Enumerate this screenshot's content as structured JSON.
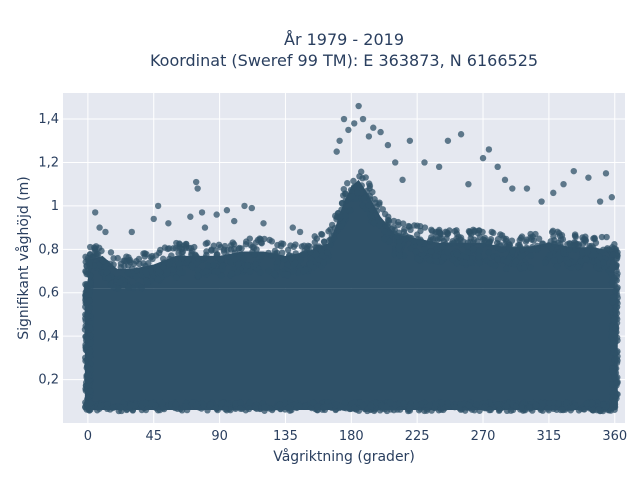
{
  "chart_data": {
    "type": "scatter",
    "title_line1": "År 1979 - 2019",
    "title_line2": "Koordinat (Sweref 99 TM): E 363873, N 6166525",
    "xlabel": "Vågriktning (grader)",
    "ylabel": "Signifikant våghöjd (m)",
    "xlim": [
      -17,
      367
    ],
    "ylim": [
      0.0,
      1.52
    ],
    "xticks": [
      0,
      45,
      90,
      135,
      180,
      225,
      270,
      315,
      360
    ],
    "xtick_labels": [
      "0",
      "45",
      "90",
      "135",
      "180",
      "225",
      "270",
      "315",
      "360"
    ],
    "yticks": [
      0.2,
      0.4,
      0.6,
      0.8,
      1.0,
      1.2,
      1.4
    ],
    "ytick_labels": [
      "0,2",
      "0,4",
      "0,6",
      "0,8",
      "1",
      "1,2",
      "1,4"
    ],
    "grid": true,
    "marker_color": "#2f5168",
    "plot_bg": "#e5e8f0",
    "dense_band_x": [
      0,
      360
    ],
    "dense_band_y": [
      0.06,
      0.62
    ],
    "envelope": {
      "x": [
        0,
        10,
        20,
        30,
        45,
        60,
        75,
        90,
        105,
        120,
        135,
        150,
        165,
        170,
        175,
        180,
        185,
        190,
        195,
        200,
        210,
        225,
        240,
        255,
        270,
        285,
        300,
        315,
        330,
        345,
        360
      ],
      "y_max": [
        0.78,
        0.8,
        0.74,
        0.74,
        0.76,
        0.8,
        0.8,
        0.8,
        0.82,
        0.82,
        0.8,
        0.82,
        0.86,
        0.95,
        1.05,
        1.12,
        1.15,
        1.1,
        1.04,
        0.98,
        0.9,
        0.88,
        0.86,
        0.86,
        0.86,
        0.84,
        0.84,
        0.86,
        0.84,
        0.84,
        0.82
      ]
    },
    "outliers": [
      [
        5,
        0.97
      ],
      [
        8,
        0.9
      ],
      [
        12,
        0.88
      ],
      [
        30,
        0.88
      ],
      [
        45,
        0.94
      ],
      [
        48,
        1.0
      ],
      [
        55,
        0.92
      ],
      [
        70,
        0.95
      ],
      [
        74,
        1.11
      ],
      [
        75,
        1.08
      ],
      [
        78,
        0.97
      ],
      [
        80,
        0.9
      ],
      [
        88,
        0.96
      ],
      [
        95,
        0.98
      ],
      [
        100,
        0.93
      ],
      [
        107,
        1.0
      ],
      [
        112,
        0.99
      ],
      [
        120,
        0.92
      ],
      [
        140,
        0.9
      ],
      [
        145,
        0.88
      ],
      [
        170,
        1.25
      ],
      [
        172,
        1.3
      ],
      [
        175,
        1.4
      ],
      [
        178,
        1.35
      ],
      [
        182,
        1.38
      ],
      [
        185,
        1.46
      ],
      [
        188,
        1.4
      ],
      [
        192,
        1.32
      ],
      [
        195,
        1.36
      ],
      [
        200,
        1.34
      ],
      [
        205,
        1.28
      ],
      [
        210,
        1.2
      ],
      [
        215,
        1.12
      ],
      [
        220,
        1.3
      ],
      [
        230,
        1.2
      ],
      [
        240,
        1.18
      ],
      [
        246,
        1.3
      ],
      [
        255,
        1.33
      ],
      [
        260,
        1.1
      ],
      [
        270,
        1.22
      ],
      [
        274,
        1.26
      ],
      [
        280,
        1.18
      ],
      [
        285,
        1.12
      ],
      [
        290,
        1.08
      ],
      [
        300,
        1.08
      ],
      [
        310,
        1.02
      ],
      [
        318,
        1.06
      ],
      [
        325,
        1.1
      ],
      [
        332,
        1.16
      ],
      [
        342,
        1.13
      ],
      [
        350,
        1.02
      ],
      [
        354,
        1.15
      ],
      [
        358,
        1.04
      ]
    ]
  }
}
